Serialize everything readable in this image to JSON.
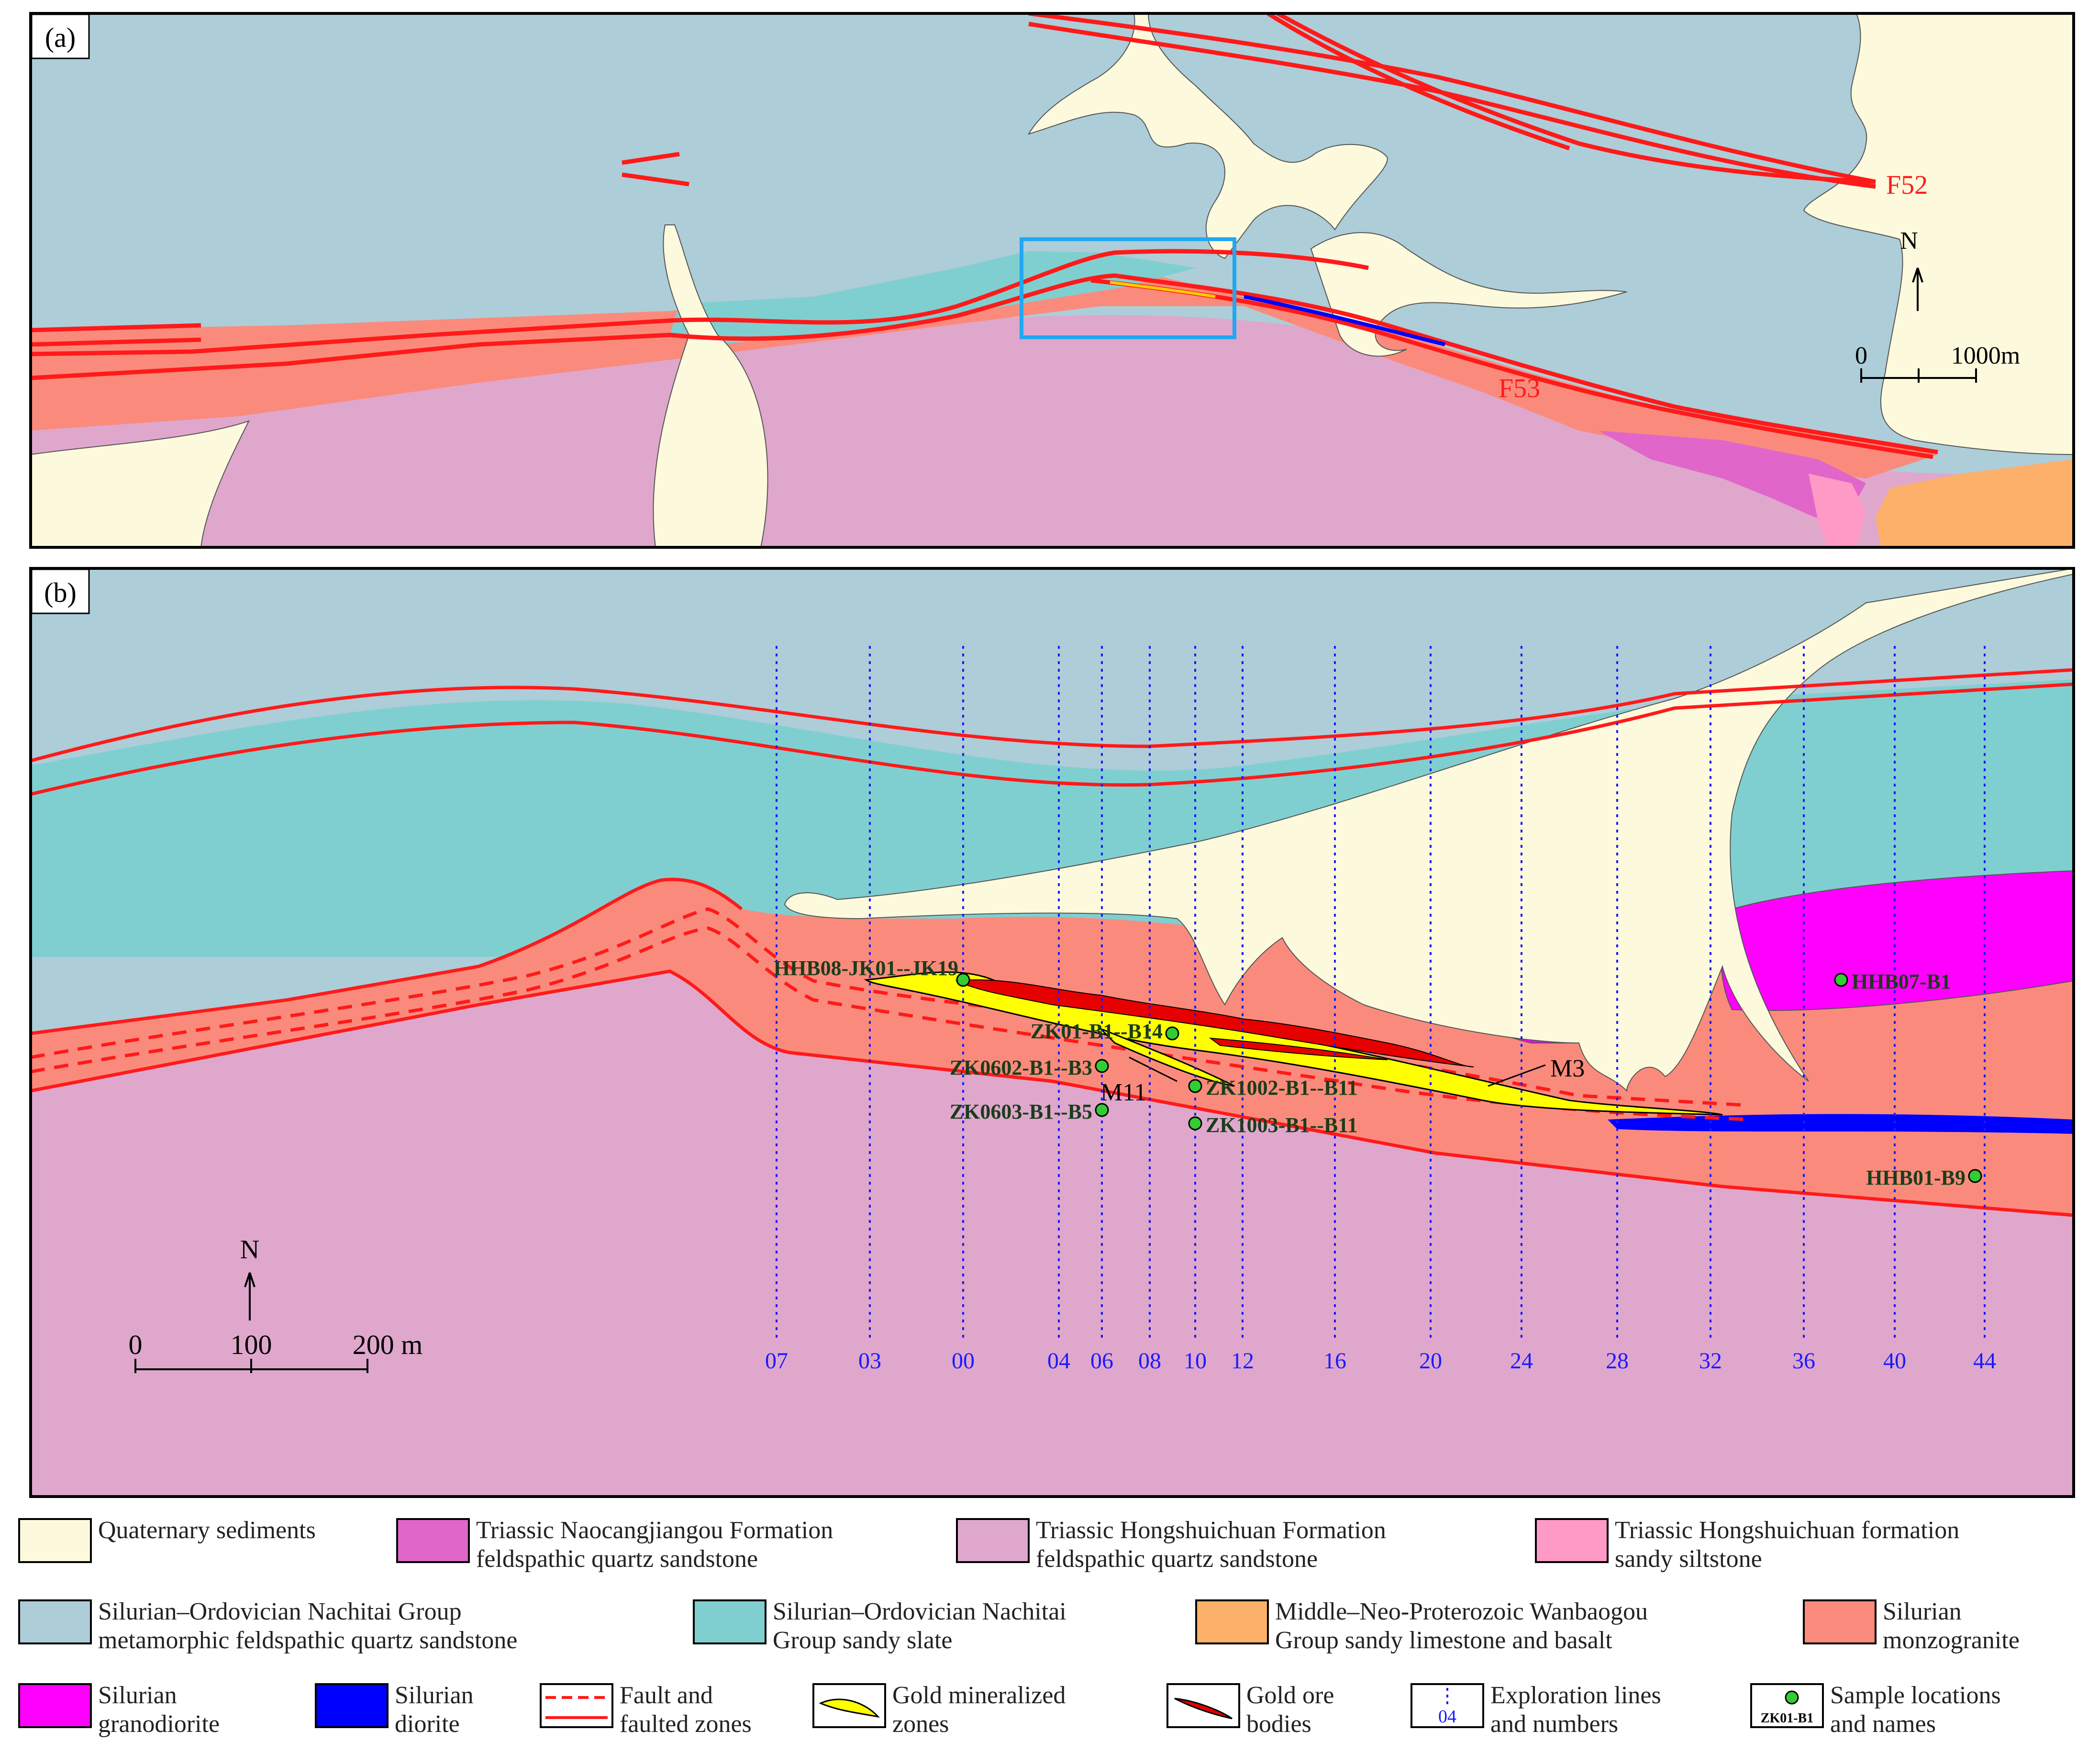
{
  "panel_a": {
    "label": "(a)",
    "fault_labels": [
      "F52",
      "F53"
    ],
    "north": "N",
    "scale": {
      "start": "0",
      "end": "1000m"
    }
  },
  "panel_b": {
    "label": "(b)",
    "north": "N",
    "scale": {
      "ticks": [
        "0",
        "100",
        "200 m"
      ]
    },
    "exploration_lines": [
      "07",
      "03",
      "00",
      "04",
      "06",
      "08",
      "10",
      "12",
      "16",
      "20",
      "24",
      "28",
      "32",
      "36",
      "40",
      "44"
    ],
    "orebody_labels": [
      "M11",
      "M3"
    ],
    "samples": [
      "HHB08-JK01--JK19",
      "ZK01-B1--B14",
      "ZK0602-B1--B3",
      "ZK1002-B1--B11",
      "ZK0603-B1--B5",
      "ZK1003-B1--B11",
      "HHB07-B1",
      "HHB01-B9"
    ]
  },
  "legend": [
    {
      "line1": "Quaternary sediments",
      "line2": "",
      "color": "#fdf9dc"
    },
    {
      "line1": "Triassic Naocangjiangou Formation",
      "line2": "feldspathic quartz sandstone",
      "color": "#e066c9"
    },
    {
      "line1": "Triassic Hongshuichuan Formation",
      "line2": "feldspathic quartz sandstone",
      "color": "#dfa7cc"
    },
    {
      "line1": "Triassic Hongshuichuan formation",
      "line2": "sandy siltstone",
      "color": "#ff99c6"
    },
    {
      "line1": "Silurian–Ordovician Nachitai Group",
      "line2": "metamorphic feldspathic quartz sandstone",
      "color": "#adcdd8"
    },
    {
      "line1": "Silurian–Ordovician Nachitai",
      "line2": "Group sandy slate",
      "color": "#7fcfd0"
    },
    {
      "line1": "Middle–Neo-Proterozoic Wanbaogou",
      "line2": "Group sandy limestone and basalt",
      "color": "#fdb06a"
    },
    {
      "line1": "Silurian",
      "line2": "monzogranite",
      "color": "#fa8b7c"
    },
    {
      "line1": "Silurian",
      "line2": "granodiorite",
      "color": "#ff00ff"
    },
    {
      "line1": "Silurian",
      "line2": "diorite",
      "color": "#0000ff"
    },
    {
      "line1": "Fault and",
      "line2": "faulted zones",
      "color": ""
    },
    {
      "line1": "Gold mineralized",
      "line2": "zones",
      "color": ""
    },
    {
      "line1": "Gold ore",
      "line2": "bodies",
      "color": ""
    },
    {
      "line1": "Exploration lines",
      "line2": "and numbers",
      "color": "",
      "sample": "04"
    },
    {
      "line1": "Sample locations",
      "line2": "and names",
      "color": "",
      "sample": "ZK01-B1"
    }
  ],
  "colors": {
    "fault": "#ff1a1a",
    "mineralized_zone": "#ffff00",
    "ore_body": "#e60000",
    "exploration_line": "#1a1aff",
    "sample_point": "#33cc33",
    "frame": "#000000",
    "index_box": "#22a7f0"
  }
}
